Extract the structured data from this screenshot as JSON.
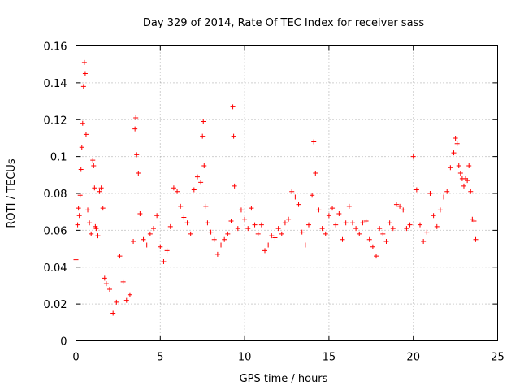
{
  "chart_data": {
    "type": "scatter",
    "title": "Day 329 of 2014, Rate Of TEC Index for receiver sass",
    "xlabel": "GPS time / hours",
    "ylabel": "ROTI / TECUs",
    "xlim": [
      0,
      25
    ],
    "ylim": [
      0,
      0.16
    ],
    "x_ticks": [
      0,
      5,
      10,
      15,
      20,
      25
    ],
    "y_ticks": [
      0,
      0.02,
      0.04,
      0.06,
      0.08,
      0.1,
      0.12,
      0.14,
      0.16
    ],
    "x_tick_labels": [
      "0",
      "5",
      "10",
      "15",
      "20",
      "25"
    ],
    "y_tick_labels": [
      "0",
      "0.02",
      "0.04",
      "0.06",
      "0.08",
      "0.1",
      "0.12",
      "0.14",
      "0.16"
    ],
    "grid": true,
    "marker": "plus",
    "color": "#ff0000",
    "series": [
      {
        "name": "ROTI",
        "x": [
          0.0,
          0.1,
          0.15,
          0.2,
          0.25,
          0.3,
          0.35,
          0.4,
          0.45,
          0.5,
          0.55,
          0.6,
          0.7,
          0.8,
          0.9,
          1.0,
          1.05,
          1.1,
          1.15,
          1.2,
          1.3,
          1.4,
          1.5,
          1.6,
          1.7,
          1.8,
          2.0,
          2.2,
          2.4,
          2.6,
          2.8,
          3.0,
          3.2,
          3.4,
          3.5,
          3.55,
          3.6,
          3.7,
          3.8,
          4.0,
          4.2,
          4.4,
          4.6,
          4.8,
          5.0,
          5.2,
          5.4,
          5.6,
          5.8,
          6.0,
          6.2,
          6.4,
          6.6,
          6.8,
          7.0,
          7.2,
          7.4,
          7.5,
          7.55,
          7.6,
          7.7,
          7.8,
          8.0,
          8.2,
          8.4,
          8.6,
          8.8,
          9.0,
          9.2,
          9.3,
          9.35,
          9.4,
          9.6,
          9.8,
          10.0,
          10.2,
          10.4,
          10.6,
          10.8,
          11.0,
          11.2,
          11.4,
          11.6,
          11.8,
          12.0,
          12.2,
          12.4,
          12.6,
          12.8,
          13.0,
          13.2,
          13.4,
          13.6,
          13.8,
          14.0,
          14.1,
          14.2,
          14.4,
          14.6,
          14.8,
          15.0,
          15.2,
          15.4,
          15.6,
          15.8,
          16.0,
          16.2,
          16.4,
          16.6,
          16.8,
          17.0,
          17.2,
          17.4,
          17.6,
          17.8,
          18.0,
          18.2,
          18.4,
          18.6,
          18.8,
          19.0,
          19.2,
          19.4,
          19.6,
          19.8,
          20.0,
          20.2,
          20.4,
          20.6,
          20.8,
          21.0,
          21.2,
          21.4,
          21.6,
          21.8,
          22.0,
          22.2,
          22.4,
          22.5,
          22.6,
          22.7,
          22.8,
          22.9,
          23.0,
          23.1,
          23.2,
          23.3,
          23.4,
          23.5,
          23.6,
          23.7
        ],
        "values": [
          0.044,
          0.063,
          0.072,
          0.068,
          0.079,
          0.093,
          0.105,
          0.118,
          0.138,
          0.151,
          0.145,
          0.112,
          0.071,
          0.064,
          0.058,
          0.098,
          0.095,
          0.083,
          0.062,
          0.061,
          0.057,
          0.081,
          0.083,
          0.072,
          0.034,
          0.031,
          0.028,
          0.015,
          0.021,
          0.046,
          0.032,
          0.022,
          0.025,
          0.054,
          0.115,
          0.121,
          0.101,
          0.091,
          0.069,
          0.055,
          0.052,
          0.058,
          0.061,
          0.068,
          0.051,
          0.043,
          0.049,
          0.062,
          0.083,
          0.081,
          0.073,
          0.067,
          0.064,
          0.058,
          0.082,
          0.089,
          0.086,
          0.111,
          0.119,
          0.095,
          0.073,
          0.064,
          0.059,
          0.055,
          0.047,
          0.052,
          0.055,
          0.058,
          0.065,
          0.127,
          0.111,
          0.084,
          0.061,
          0.071,
          0.066,
          0.061,
          0.072,
          0.063,
          0.058,
          0.063,
          0.049,
          0.052,
          0.057,
          0.056,
          0.061,
          0.058,
          0.064,
          0.066,
          0.081,
          0.078,
          0.074,
          0.059,
          0.052,
          0.063,
          0.079,
          0.108,
          0.091,
          0.071,
          0.061,
          0.058,
          0.068,
          0.072,
          0.063,
          0.069,
          0.055,
          0.064,
          0.073,
          0.064,
          0.061,
          0.058,
          0.064,
          0.065,
          0.055,
          0.051,
          0.046,
          0.061,
          0.058,
          0.054,
          0.064,
          0.061,
          0.074,
          0.073,
          0.071,
          0.061,
          0.063,
          0.1,
          0.082,
          0.063,
          0.054,
          0.059,
          0.08,
          0.068,
          0.062,
          0.071,
          0.078,
          0.081,
          0.094,
          0.102,
          0.11,
          0.107,
          0.095,
          0.091,
          0.088,
          0.084,
          0.088,
          0.087,
          0.095,
          0.081,
          0.066,
          0.065,
          0.055
        ]
      }
    ]
  }
}
